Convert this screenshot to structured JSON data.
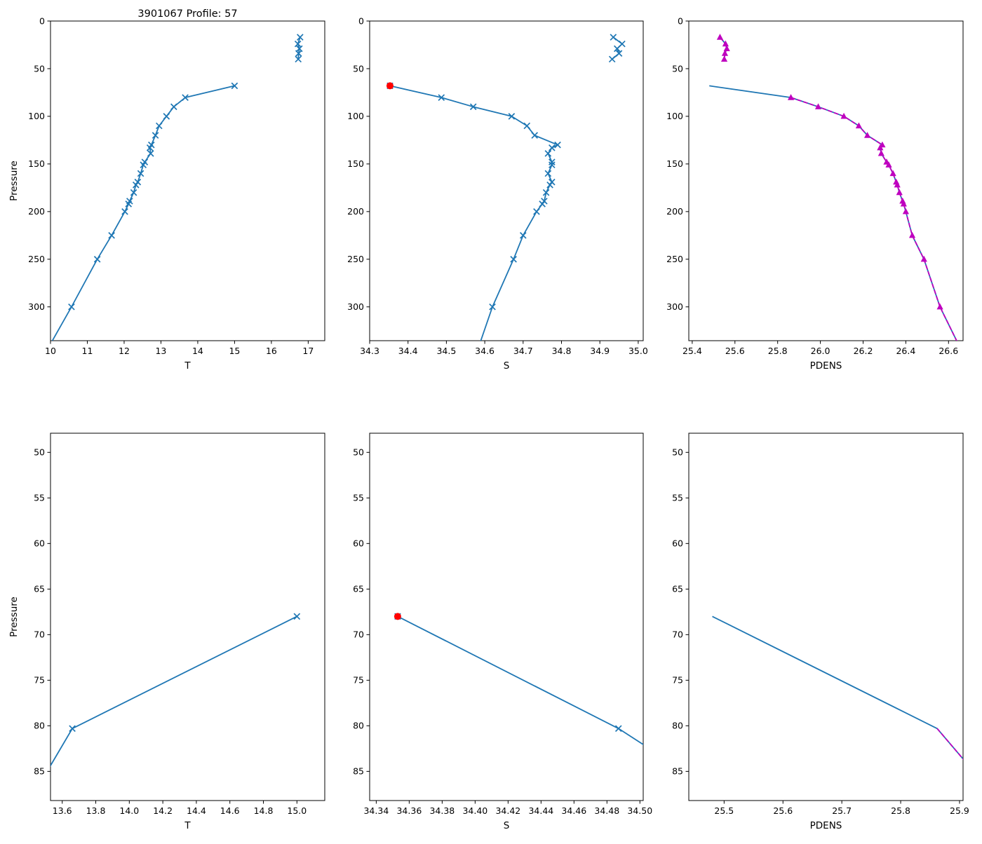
{
  "figure": {
    "colors": {
      "profile": "#1f77b4",
      "qc": "#bf00bf",
      "flag": "#ff0000",
      "axis": "#000000",
      "background": "#ffffff"
    }
  },
  "chart_data": [
    {
      "id": "temperature-full",
      "type": "line",
      "title": "3901067 Profile: 57",
      "xlabel": "T",
      "ylabel": "Pressure",
      "xlim": [
        10.0,
        17.45
      ],
      "ylim": [
        0,
        335.5
      ],
      "y_inverted": true,
      "grid": false,
      "xticks": [
        10,
        11,
        12,
        13,
        14,
        15,
        16,
        17
      ],
      "xtick_labels": [
        "10",
        "11",
        "12",
        "13",
        "14",
        "15",
        "16",
        "17"
      ],
      "yticks": [
        0,
        50,
        100,
        150,
        200,
        250,
        300
      ],
      "ytick_labels": [
        "0",
        "50",
        "100",
        "150",
        "200",
        "250",
        "300"
      ],
      "series": [
        {
          "name": "temperature-shallow",
          "color": "profile",
          "marker": "x",
          "points": [
            [
              16.78,
              17
            ],
            [
              16.72,
              24
            ],
            [
              16.76,
              29
            ],
            [
              16.74,
              34
            ],
            [
              16.73,
              40
            ]
          ]
        },
        {
          "name": "temperature-main",
          "color": "profile",
          "marker": "x",
          "points": [
            [
              15.0,
              68
            ],
            [
              13.66,
              80.3
            ],
            [
              13.35,
              90
            ],
            [
              13.15,
              100
            ],
            [
              12.95,
              110
            ],
            [
              12.85,
              120
            ],
            [
              12.74,
              130
            ],
            [
              12.7,
              133
            ],
            [
              12.72,
              139
            ],
            [
              12.56,
              148
            ],
            [
              12.52,
              151
            ],
            [
              12.45,
              160
            ],
            [
              12.37,
              169
            ],
            [
              12.32,
              172
            ],
            [
              12.26,
              180
            ],
            [
              12.15,
              189
            ],
            [
              12.12,
              192
            ],
            [
              12.02,
              200
            ],
            [
              11.66,
              225
            ],
            [
              11.27,
              250
            ],
            [
              10.57,
              300
            ],
            [
              9.97,
              341
            ]
          ]
        }
      ]
    },
    {
      "id": "salinity-full",
      "type": "line",
      "title": "",
      "xlabel": "S",
      "ylabel": "",
      "xlim": [
        34.3,
        35.013
      ],
      "ylim": [
        0,
        335.5
      ],
      "y_inverted": true,
      "grid": false,
      "xticks": [
        34.3,
        34.4,
        34.5,
        34.6,
        34.7,
        34.8,
        34.9,
        35.0
      ],
      "xtick_labels": [
        "34.3",
        "34.4",
        "34.5",
        "34.6",
        "34.7",
        "34.8",
        "34.9",
        "35.0"
      ],
      "yticks": [
        0,
        50,
        100,
        150,
        200,
        250,
        300
      ],
      "ytick_labels": [
        "0",
        "50",
        "100",
        "150",
        "200",
        "250",
        "300"
      ],
      "series": [
        {
          "name": "salinity-shallow",
          "color": "profile",
          "marker": "x",
          "points": [
            [
              34.935,
              17
            ],
            [
              34.958,
              24
            ],
            [
              34.945,
              29
            ],
            [
              34.95,
              34
            ],
            [
              34.932,
              40
            ]
          ]
        },
        {
          "name": "salinity-main",
          "color": "profile",
          "marker": "x",
          "points": [
            [
              34.353,
              68
            ],
            [
              34.487,
              80.3
            ],
            [
              34.57,
              90
            ],
            [
              34.67,
              100
            ],
            [
              34.71,
              110
            ],
            [
              34.73,
              120
            ],
            [
              34.79,
              130
            ],
            [
              34.775,
              133
            ],
            [
              34.765,
              139
            ],
            [
              34.775,
              148
            ],
            [
              34.775,
              151
            ],
            [
              34.765,
              160
            ],
            [
              34.775,
              169
            ],
            [
              34.77,
              172
            ],
            [
              34.76,
              180
            ],
            [
              34.755,
              189
            ],
            [
              34.75,
              192
            ],
            [
              34.735,
              200
            ],
            [
              34.7,
              225
            ],
            [
              34.675,
              250
            ],
            [
              34.62,
              300
            ],
            [
              34.585,
              341
            ]
          ]
        },
        {
          "name": "salinity-flagged-point",
          "color": "flag",
          "marker": "circle",
          "points": [
            [
              34.353,
              68
            ]
          ]
        }
      ]
    },
    {
      "id": "pdens-full",
      "type": "line",
      "title": "",
      "xlabel": "PDENS",
      "ylabel": "",
      "xlim": [
        25.384,
        26.668
      ],
      "ylim": [
        0,
        335.5
      ],
      "y_inverted": true,
      "grid": false,
      "xticks": [
        25.4,
        25.6,
        25.8,
        26.0,
        26.2,
        26.4,
        26.6
      ],
      "xtick_labels": [
        "25.4",
        "25.6",
        "25.8",
        "26.0",
        "26.2",
        "26.4",
        "26.6"
      ],
      "yticks": [
        0,
        50,
        100,
        150,
        200,
        250,
        300
      ],
      "ytick_labels": [
        "0",
        "50",
        "100",
        "150",
        "200",
        "250",
        "300"
      ],
      "series": [
        {
          "name": "pdens-shallow-raw",
          "color": "profile",
          "marker": null,
          "points": [
            [
              25.53,
              17
            ],
            [
              25.556,
              24
            ],
            [
              25.562,
              29
            ],
            [
              25.553,
              34
            ],
            [
              25.55,
              40
            ]
          ]
        },
        {
          "name": "pdens-main-raw",
          "color": "profile",
          "marker": null,
          "points": [
            [
              25.48,
              68
            ],
            [
              25.862,
              80.3
            ],
            [
              25.99,
              90
            ],
            [
              26.11,
              100
            ],
            [
              26.18,
              110
            ],
            [
              26.22,
              120
            ],
            [
              26.29,
              130
            ],
            [
              26.28,
              133
            ],
            [
              26.285,
              139
            ],
            [
              26.31,
              148
            ],
            [
              26.32,
              151
            ],
            [
              26.34,
              160
            ],
            [
              26.355,
              169
            ],
            [
              26.36,
              172
            ],
            [
              26.37,
              180
            ],
            [
              26.385,
              189
            ],
            [
              26.39,
              192
            ],
            [
              26.4,
              200
            ],
            [
              26.43,
              225
            ],
            [
              26.485,
              250
            ],
            [
              26.56,
              300
            ],
            [
              26.65,
              341
            ]
          ]
        },
        {
          "name": "pdens-shallow-qc",
          "color": "qc",
          "dashed": true,
          "marker": "triangle",
          "points": [
            [
              25.53,
              17
            ],
            [
              25.556,
              24
            ],
            [
              25.562,
              29
            ],
            [
              25.553,
              34
            ],
            [
              25.55,
              40
            ]
          ]
        },
        {
          "name": "pdens-main-qc",
          "color": "qc",
          "dashed": true,
          "marker": "triangle",
          "points": [
            [
              25.862,
              80.3
            ],
            [
              25.99,
              90
            ],
            [
              26.11,
              100
            ],
            [
              26.18,
              110
            ],
            [
              26.22,
              120
            ],
            [
              26.29,
              130
            ],
            [
              26.28,
              133
            ],
            [
              26.285,
              139
            ],
            [
              26.31,
              148
            ],
            [
              26.32,
              151
            ],
            [
              26.34,
              160
            ],
            [
              26.355,
              169
            ],
            [
              26.36,
              172
            ],
            [
              26.37,
              180
            ],
            [
              26.385,
              189
            ],
            [
              26.39,
              192
            ],
            [
              26.4,
              200
            ],
            [
              26.43,
              225
            ],
            [
              26.485,
              250
            ],
            [
              26.56,
              300
            ],
            [
              26.65,
              341
            ]
          ]
        }
      ]
    },
    {
      "id": "temperature-zoom",
      "type": "line",
      "title": "",
      "xlabel": "T",
      "ylabel": "Pressure",
      "xlim": [
        13.53,
        15.166
      ],
      "ylim": [
        47.9,
        88.2
      ],
      "y_inverted": true,
      "grid": false,
      "xticks": [
        13.6,
        13.8,
        14.0,
        14.2,
        14.4,
        14.6,
        14.8,
        15.0
      ],
      "xtick_labels": [
        "13.6",
        "13.8",
        "14.0",
        "14.2",
        "14.4",
        "14.6",
        "14.8",
        "15.0"
      ],
      "yticks": [
        50,
        55,
        60,
        65,
        70,
        75,
        80,
        85
      ],
      "ytick_labels": [
        "50",
        "55",
        "60",
        "65",
        "70",
        "75",
        "80",
        "85"
      ],
      "series": [
        {
          "name": "temperature-zoom-main",
          "color": "profile",
          "marker": "x",
          "points": [
            [
              15.0,
              68
            ],
            [
              13.66,
              80.3
            ],
            [
              13.35,
              90
            ]
          ]
        }
      ]
    },
    {
      "id": "salinity-zoom",
      "type": "line",
      "title": "",
      "xlabel": "S",
      "ylabel": "",
      "xlim": [
        34.336,
        34.502
      ],
      "ylim": [
        47.9,
        88.2
      ],
      "y_inverted": true,
      "grid": false,
      "xticks": [
        34.34,
        34.36,
        34.38,
        34.4,
        34.42,
        34.44,
        34.46,
        34.48,
        34.5
      ],
      "xtick_labels": [
        "34.34",
        "34.36",
        "34.38",
        "34.40",
        "34.42",
        "34.44",
        "34.46",
        "34.48",
        "34.50"
      ],
      "yticks": [
        50,
        55,
        60,
        65,
        70,
        75,
        80,
        85
      ],
      "ytick_labels": [
        "50",
        "55",
        "60",
        "65",
        "70",
        "75",
        "80",
        "85"
      ],
      "series": [
        {
          "name": "salinity-zoom-main",
          "color": "profile",
          "marker": "x",
          "points": [
            [
              34.353,
              68
            ],
            [
              34.487,
              80.3
            ],
            [
              34.57,
              90
            ]
          ]
        },
        {
          "name": "salinity-zoom-flagged-point",
          "color": "flag",
          "marker": "circle",
          "points": [
            [
              34.353,
              68
            ]
          ]
        }
      ]
    },
    {
      "id": "pdens-zoom",
      "type": "line",
      "title": "",
      "xlabel": "PDENS",
      "ylabel": "",
      "xlim": [
        25.44,
        25.906
      ],
      "ylim": [
        47.9,
        88.2
      ],
      "y_inverted": true,
      "grid": false,
      "xticks": [
        25.5,
        25.6,
        25.7,
        25.8,
        25.9
      ],
      "xtick_labels": [
        "25.5",
        "25.6",
        "25.7",
        "25.8",
        "25.9"
      ],
      "yticks": [
        50,
        55,
        60,
        65,
        70,
        75,
        80,
        85
      ],
      "ytick_labels": [
        "50",
        "55",
        "60",
        "65",
        "70",
        "75",
        "80",
        "85"
      ],
      "series": [
        {
          "name": "pdens-zoom-raw",
          "color": "profile",
          "marker": null,
          "points": [
            [
              25.48,
              68
            ],
            [
              25.862,
              80.3
            ],
            [
              25.99,
              90
            ]
          ]
        },
        {
          "name": "pdens-zoom-qc",
          "color": "qc",
          "dashed": true,
          "marker": null,
          "points": [
            [
              25.862,
              80.3
            ],
            [
              25.99,
              90
            ]
          ]
        }
      ]
    }
  ]
}
